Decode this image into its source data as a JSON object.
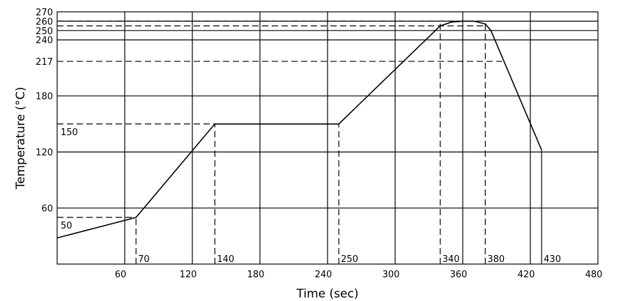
{
  "chart_data": {
    "type": "line",
    "title": "",
    "xlabel": "Time (sec)",
    "ylabel": "Temperature (°C)",
    "xlim": [
      0,
      480
    ],
    "ylim": [
      0,
      270
    ],
    "grid": true,
    "x_ticks": [
      60,
      120,
      180,
      240,
      300,
      360,
      420,
      480
    ],
    "y_ticks": [
      60,
      120,
      180,
      240,
      250,
      260,
      270
    ],
    "y_tick_labels_extra": [
      217
    ],
    "series": [
      {
        "x": [
          0,
          70,
          140,
          250,
          340,
          350,
          360,
          370,
          380,
          385,
          430
        ],
        "y": [
          28,
          50,
          150,
          150,
          255,
          259,
          260,
          260,
          257,
          250,
          122
        ]
      }
    ],
    "annotations": {
      "x_markers": [
        {
          "x": 70,
          "label": "70"
        },
        {
          "x": 140,
          "label": "140"
        },
        {
          "x": 250,
          "label": "250"
        },
        {
          "x": 340,
          "label": "340"
        },
        {
          "x": 380,
          "label": "380"
        },
        {
          "x": 430,
          "label": "430"
        }
      ],
      "y_markers": [
        {
          "y": 50,
          "label": "50"
        },
        {
          "y": 150,
          "label": "150"
        }
      ],
      "dashed_h": [
        {
          "y": 50,
          "x0": 0,
          "x1": 70
        },
        {
          "y": 150,
          "x0": 0,
          "x1": 140
        },
        {
          "y": 217,
          "x0": 0,
          "x1": 395
        },
        {
          "y": 255,
          "x0": 0,
          "x1": 380
        },
        {
          "y": 260,
          "x0": 0,
          "x1": 380
        }
      ],
      "dashed_v": [
        {
          "x": 70,
          "y0": 0,
          "y1": 50
        },
        {
          "x": 140,
          "y0": 0,
          "y1": 150
        },
        {
          "x": 250,
          "y0": 0,
          "y1": 150
        },
        {
          "x": 340,
          "y0": 0,
          "y1": 260
        },
        {
          "x": 380,
          "y0": 0,
          "y1": 260
        }
      ],
      "solid_v": [
        {
          "x": 430,
          "y0": 0,
          "y1": 122
        }
      ]
    }
  }
}
